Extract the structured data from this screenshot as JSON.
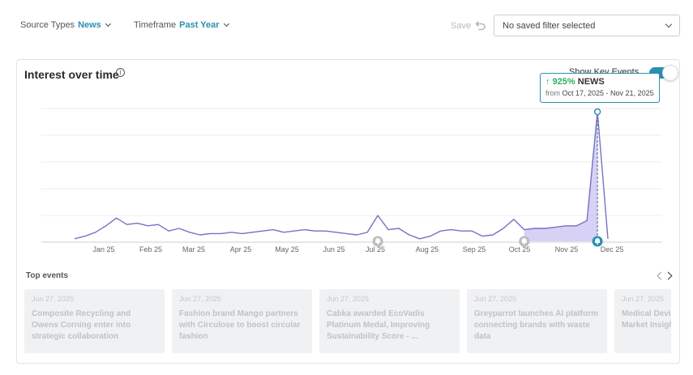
{
  "filters": {
    "source_types": {
      "label": "Source Types",
      "value": "News"
    },
    "timeframe": {
      "label": "Timeframe",
      "value": "Past Year"
    }
  },
  "toolbar": {
    "save_label": "Save"
  },
  "saved_filter": {
    "value": "No saved filter selected"
  },
  "card": {
    "title": "Interest over time",
    "key_events_label": "Show Key Events",
    "key_events_enabled": true
  },
  "colors": {
    "accent": "#2b8fb0",
    "line": "#7b6fc4",
    "fill": "#c9c1f2",
    "positive": "#2fae62"
  },
  "tooltip": {
    "percent": "925%",
    "source": "NEWS",
    "from_label": "from",
    "dates": "Oct 17, 2025 - Nov 21, 2025"
  },
  "chart_data": {
    "type": "area",
    "title": "Interest over time",
    "xlabel": "",
    "ylabel": "",
    "x_ticks": [
      "Jan 25",
      "Feb 25",
      "Mar 25",
      "Apr 25",
      "May 25",
      "Jun 25",
      "Jul 25",
      "Aug 25",
      "Sep 25",
      "Oct 25",
      "Nov 25",
      "Dec 25"
    ],
    "grid": true,
    "ylim": [
      0,
      100
    ],
    "series": [
      {
        "values": [
          2,
          4,
          7,
          12,
          18,
          13,
          14,
          12,
          13,
          8,
          10,
          7,
          5,
          6,
          6,
          7,
          6,
          7,
          8,
          9,
          7,
          8,
          9,
          8,
          8,
          7,
          6,
          5,
          7,
          20,
          9,
          10,
          5,
          2,
          4,
          8,
          9,
          8,
          8,
          4,
          5,
          10,
          17,
          9,
          10,
          10,
          11,
          12,
          12,
          16,
          100,
          2
        ]
      }
    ],
    "highlight_range": [
      43,
      50
    ],
    "key_event_indices": [
      29,
      43,
      50
    ]
  },
  "top_events": {
    "title": "Top events",
    "items": [
      {
        "date": "Jun 27, 2025",
        "headline": "Composite Recycling and Owens Corning enter into strategic collaboration"
      },
      {
        "date": "Jun 27, 2025",
        "headline": "Fashion brand Mango partners with Circulose to boost circular fashion"
      },
      {
        "date": "Jun 27, 2025",
        "headline": "Cabka awarded EcoVadis Platinum Medal, Improving Sustainability Score - ..."
      },
      {
        "date": "Jun 27, 2025",
        "headline": "Greyparrot launches AI platform connecting brands with waste data"
      },
      {
        "date": "Jun 27, 2025",
        "headline": "Medical Device Pharmaceutical Market Insights"
      }
    ]
  }
}
